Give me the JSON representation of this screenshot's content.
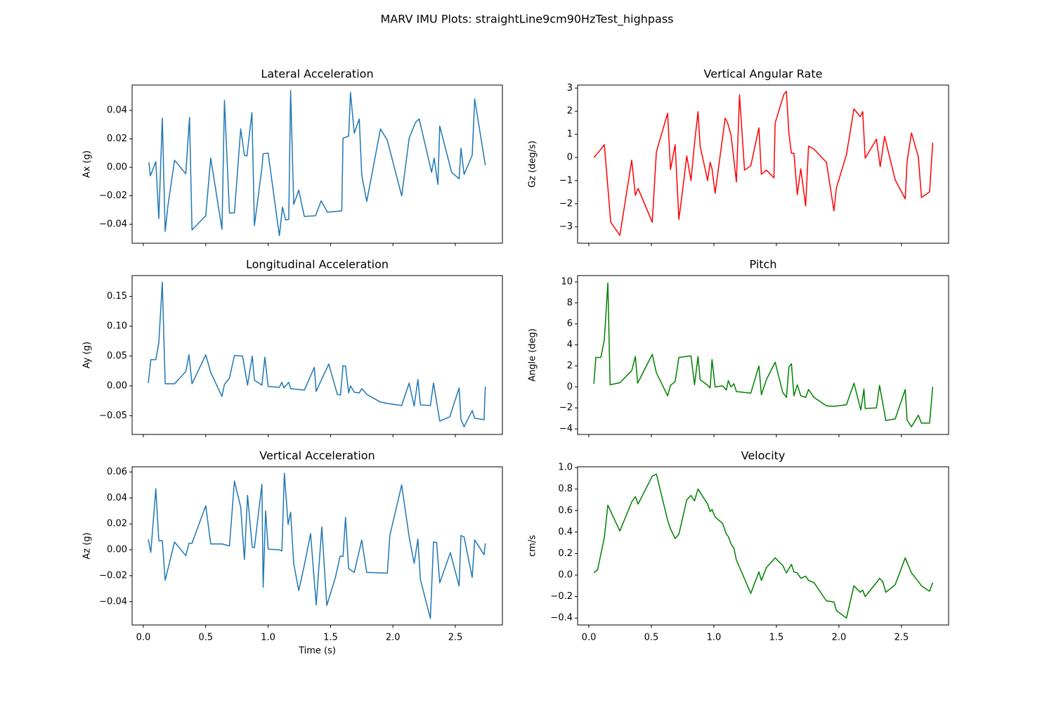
{
  "title": "MARV IMU Plots: straightLine9cm90HzTest_highpass",
  "chart_data": [
    {
      "type": "line",
      "title": "Lateral Acceleration",
      "ylabel": "Ax (g)",
      "color": "#1f77b4",
      "x": [
        0.045,
        0.056,
        0.1,
        0.124,
        0.152,
        0.175,
        0.197,
        0.25,
        0.34,
        0.37,
        0.39,
        0.5,
        0.54,
        0.63,
        0.65,
        0.69,
        0.73,
        0.78,
        0.81,
        0.83,
        0.87,
        0.89,
        0.95,
        0.96,
        1.0,
        1.075,
        1.09,
        1.115,
        1.14,
        1.165,
        1.18,
        1.205,
        1.245,
        1.29,
        1.38,
        1.425,
        1.475,
        1.59,
        1.6,
        1.645,
        1.66,
        1.69,
        1.73,
        1.75,
        1.79,
        1.9,
        1.955,
        2.07,
        2.13,
        2.18,
        2.21,
        2.31,
        2.33,
        2.36,
        2.375,
        2.47,
        2.53,
        2.545,
        2.57,
        2.635,
        2.655,
        2.74
      ],
      "values": [
        0.0035,
        -0.006,
        0.004,
        -0.036,
        0.0346,
        -0.045,
        -0.027,
        0.005,
        -0.0045,
        0.035,
        -0.044,
        -0.034,
        0.0065,
        -0.0435,
        0.047,
        -0.032,
        -0.032,
        0.027,
        0.0085,
        0.008,
        0.0385,
        -0.041,
        -0.0005,
        0.0095,
        0.01,
        -0.0385,
        -0.048,
        -0.028,
        -0.037,
        -0.0365,
        0.054,
        -0.026,
        -0.016,
        -0.0345,
        -0.034,
        -0.0235,
        -0.0315,
        -0.0305,
        0.0205,
        0.022,
        0.0525,
        0.024,
        0.034,
        -0.0055,
        -0.024,
        0.027,
        0.019,
        -0.02,
        0.0205,
        0.0315,
        0.034,
        -0.0035,
        0.0065,
        -0.012,
        0.029,
        -0.0035,
        -0.008,
        0.0135,
        -0.005,
        0.0085,
        0.048,
        0.0015
      ],
      "xlim": [
        -0.09,
        2.877
      ],
      "ylim": [
        -0.0533,
        0.0578
      ],
      "show_xtick_labels": false,
      "xticks": [
        0,
        0.5,
        1,
        1.5,
        2,
        2.5
      ],
      "yticks": [
        {
          "value": -0.04,
          "label": "−0.04"
        },
        {
          "value": -0.02,
          "label": "−0.02"
        },
        {
          "value": 0,
          "label": "0.00"
        },
        0.02,
        0.04
      ]
    },
    {
      "type": "line",
      "title": "Vertical Angular Rate",
      "ylabel": "Gz (deg/s)",
      "color": "#ff0000",
      "x": [
        0.04,
        0.07,
        0.124,
        0.175,
        0.248,
        0.343,
        0.372,
        0.394,
        0.507,
        0.54,
        0.63,
        0.653,
        0.69,
        0.72,
        0.755,
        0.783,
        0.817,
        0.845,
        0.873,
        0.89,
        0.95,
        0.97,
        0.985,
        1.01,
        1.09,
        1.11,
        1.137,
        1.18,
        1.205,
        1.245,
        1.295,
        1.36,
        1.38,
        1.42,
        1.48,
        1.49,
        1.56,
        1.58,
        1.6,
        1.62,
        1.64,
        1.667,
        1.695,
        1.734,
        1.757,
        1.8,
        1.9,
        1.96,
        1.98,
        2.06,
        2.12,
        2.17,
        2.19,
        2.21,
        2.3,
        2.33,
        2.365,
        2.45,
        2.53,
        2.545,
        2.58,
        2.635,
        2.66,
        2.725,
        2.75
      ],
      "values": [
        0,
        0.18,
        0.55,
        -2.8,
        -3.37,
        -0.12,
        -1.64,
        -1.34,
        -2.8,
        0.24,
        1.91,
        -0.52,
        0.55,
        -2.68,
        -1.19,
        0.06,
        -1.0,
        0.61,
        1.98,
        0.49,
        -1.0,
        -0.21,
        -0.49,
        -1.55,
        1.7,
        1.49,
        0.97,
        -1.06,
        2.71,
        -0.55,
        -0.36,
        1.28,
        -0.73,
        -0.55,
        -0.88,
        1.49,
        2.74,
        2.86,
        1.03,
        0.18,
        0.18,
        -1.61,
        -0.49,
        -2.1,
        0.49,
        0.36,
        -0.21,
        -2.31,
        -1.31,
        0.12,
        2.1,
        1.76,
        1.98,
        -0.03,
        0.79,
        -0.4,
        0.91,
        -0.97,
        -1.79,
        -0.18,
        1.06,
        0.03,
        -1.73,
        -1.49,
        0.64
      ],
      "xlim": [
        -0.09,
        2.877
      ],
      "ylim": [
        -3.71,
        3.13
      ],
      "show_xtick_labels": false,
      "xticks": [
        0,
        0.5,
        1,
        1.5,
        2,
        2.5
      ],
      "yticks": [
        {
          "value": -3,
          "label": "−3"
        },
        {
          "value": -2,
          "label": "−2"
        },
        {
          "value": -1,
          "label": "−1"
        },
        0,
        1,
        2,
        3
      ]
    },
    {
      "type": "line",
      "title": "Longitudinal Acceleration",
      "ylabel": "Ay (g)",
      "color": "#1f77b4",
      "x": [
        0.04,
        0.06,
        0.1,
        0.124,
        0.152,
        0.175,
        0.25,
        0.34,
        0.366,
        0.39,
        0.5,
        0.54,
        0.63,
        0.65,
        0.69,
        0.73,
        0.795,
        0.835,
        0.873,
        0.89,
        0.95,
        0.974,
        1.0,
        1.09,
        1.11,
        1.126,
        1.165,
        1.18,
        1.29,
        1.37,
        1.385,
        1.43,
        1.486,
        1.554,
        1.58,
        1.6,
        1.62,
        1.645,
        1.66,
        1.69,
        1.73,
        1.75,
        1.79,
        1.9,
        1.955,
        2.07,
        2.13,
        2.17,
        2.2,
        2.22,
        2.3,
        2.325,
        2.375,
        2.455,
        2.53,
        2.545,
        2.57,
        2.635,
        2.655,
        2.73,
        2.74
      ],
      "values": [
        0.005,
        0.044,
        0.044,
        0.072,
        0.174,
        0.0035,
        0.0035,
        0.024,
        0.052,
        0.0035,
        0.052,
        0.0225,
        -0.0177,
        0.0024,
        0.013,
        0.051,
        0.05,
        0.0012,
        0.05,
        0.0095,
        0.0012,
        0.048,
        -0.0012,
        -0.0024,
        0.006,
        -0.0035,
        0.006,
        -0.0047,
        -0.0071,
        0.031,
        -0.0094,
        0.0118,
        0.0366,
        -0.0142,
        -0.0154,
        0.034,
        0.033,
        -0.0118,
        0,
        -0.0106,
        -0.0118,
        -0.0047,
        -0.0142,
        -0.0272,
        -0.0295,
        -0.033,
        0.0047,
        -0.0342,
        0.0106,
        -0.0319,
        -0.033,
        0.0047,
        -0.059,
        -0.052,
        -0.0035,
        -0.0567,
        -0.0685,
        -0.0413,
        -0.0543,
        -0.0567,
        -0.0012
      ],
      "xlim": [
        -0.09,
        2.877
      ],
      "ylim": [
        -0.0815,
        0.185
      ],
      "show_xtick_labels": false,
      "xticks": [
        0,
        0.5,
        1,
        1.5,
        2,
        2.5
      ],
      "yticks": [
        {
          "value": -0.05,
          "label": "−0.05"
        },
        {
          "value": 0,
          "label": "0.00"
        },
        0.05,
        {
          "value": 0.1,
          "label": "0.10"
        },
        0.15
      ]
    },
    {
      "type": "line",
      "title": "Pitch",
      "ylabel": "Angle (deg)",
      "color": "#008000",
      "x": [
        0.04,
        0.056,
        0.096,
        0.124,
        0.152,
        0.17,
        0.248,
        0.343,
        0.372,
        0.39,
        0.507,
        0.54,
        0.63,
        0.653,
        0.69,
        0.72,
        0.783,
        0.817,
        0.845,
        0.873,
        0.89,
        0.95,
        0.97,
        0.985,
        1.01,
        1.07,
        1.1,
        1.115,
        1.137,
        1.16,
        1.18,
        1.295,
        1.36,
        1.38,
        1.42,
        1.49,
        1.55,
        1.58,
        1.6,
        1.62,
        1.64,
        1.667,
        1.695,
        1.734,
        1.757,
        1.8,
        1.9,
        1.96,
        2.06,
        2.12,
        2.175,
        2.2,
        2.21,
        2.3,
        2.325,
        2.375,
        2.45,
        2.53,
        2.545,
        2.58,
        2.635,
        2.66,
        2.725,
        2.75
      ],
      "values": [
        0.3,
        2.8,
        2.8,
        4.5,
        9.9,
        0.2,
        0.4,
        1.55,
        2.9,
        0.35,
        3.1,
        1.35,
        -0.85,
        0.15,
        0.5,
        2.8,
        2.9,
        2.95,
        0.2,
        2.9,
        0.7,
        0.15,
        -0.1,
        2.6,
        0,
        0.1,
        -0.3,
        0.6,
        0,
        0.3,
        -0.45,
        -0.6,
        2.0,
        -0.75,
        0.7,
        2.35,
        -0.5,
        -1.0,
        1.9,
        2.2,
        -0.85,
        0.2,
        -0.85,
        -1.0,
        -0.25,
        -1.0,
        -1.8,
        -1.85,
        -1.7,
        0.35,
        -2.2,
        -0.2,
        -2.05,
        -2.0,
        0.15,
        -3.2,
        -3.05,
        -0.25,
        -3.15,
        -3.8,
        -2.7,
        -3.45,
        -3.45,
        0
      ],
      "xlim": [
        -0.09,
        2.877
      ],
      "ylim": [
        -4.53,
        10.6
      ],
      "show_xtick_labels": false,
      "xticks": [
        0,
        0.5,
        1,
        1.5,
        2,
        2.5
      ],
      "yticks": [
        {
          "value": -4,
          "label": "−4"
        },
        {
          "value": -2,
          "label": "−2"
        },
        0,
        2,
        4,
        6,
        8,
        10
      ]
    },
    {
      "type": "line",
      "title": "Vertical Acceleration",
      "ylabel": "Az (g)",
      "xlabel": "Time (s)",
      "color": "#1f77b4",
      "x": [
        0.04,
        0.06,
        0.1,
        0.124,
        0.152,
        0.175,
        0.25,
        0.34,
        0.366,
        0.39,
        0.5,
        0.54,
        0.63,
        0.69,
        0.73,
        0.78,
        0.81,
        0.835,
        0.873,
        0.89,
        0.95,
        0.96,
        0.98,
        1.0,
        1.09,
        1.11,
        1.13,
        1.16,
        1.18,
        1.205,
        1.245,
        1.29,
        1.34,
        1.385,
        1.43,
        1.47,
        1.54,
        1.576,
        1.6,
        1.62,
        1.645,
        1.69,
        1.75,
        1.79,
        1.955,
        1.975,
        2.07,
        2.13,
        2.17,
        2.2,
        2.22,
        2.3,
        2.325,
        2.35,
        2.375,
        2.46,
        2.53,
        2.545,
        2.57,
        2.635,
        2.655,
        2.73,
        2.74
      ],
      "values": [
        0.008,
        -0.002,
        0.047,
        0.007,
        0.007,
        -0.0235,
        0.006,
        -0.0045,
        0.005,
        0.005,
        0.034,
        0.0045,
        0.0045,
        0.003,
        0.053,
        0.033,
        -0.0075,
        0.042,
        0.002,
        0.0015,
        0.0505,
        -0.029,
        0.03,
        0.0005,
        0,
        -0.001,
        0.059,
        0.0195,
        0.029,
        -0.0105,
        -0.0315,
        -0.012,
        0.0125,
        -0.0425,
        0.0175,
        -0.043,
        -0.021,
        -0.005,
        -0.005,
        0.025,
        -0.0145,
        -0.0175,
        0.0075,
        -0.0175,
        -0.018,
        0.011,
        0.05,
        0.0098,
        -0.0105,
        0.0082,
        -0.023,
        -0.053,
        0.006,
        0.0055,
        -0.0255,
        -0.0022,
        -0.028,
        0.011,
        0.0098,
        -0.0213,
        0.0076,
        -0.0038,
        0.005
      ],
      "xlim": [
        -0.09,
        2.877
      ],
      "ylim": [
        -0.058,
        0.064
      ],
      "show_xtick_labels": true,
      "xticks": [
        {
          "value": 0,
          "label": "0.0"
        },
        0.5,
        {
          "value": 1,
          "label": "1.0"
        },
        1.5,
        {
          "value": 2,
          "label": "2.0"
        },
        2.5
      ],
      "yticks": [
        {
          "value": -0.04,
          "label": "−0.04"
        },
        {
          "value": -0.02,
          "label": "−0.02"
        },
        {
          "value": 0,
          "label": "0.00"
        },
        0.02,
        0.04,
        0.06
      ]
    },
    {
      "type": "line",
      "title": "Velocity",
      "ylabel": "cm/s",
      "color": "#008000",
      "x": [
        0.04,
        0.07,
        0.124,
        0.152,
        0.248,
        0.343,
        0.372,
        0.394,
        0.507,
        0.54,
        0.63,
        0.653,
        0.69,
        0.72,
        0.783,
        0.817,
        0.845,
        0.873,
        0.95,
        0.97,
        0.985,
        1.01,
        1.07,
        1.1,
        1.115,
        1.137,
        1.16,
        1.18,
        1.295,
        1.36,
        1.38,
        1.42,
        1.49,
        1.55,
        1.58,
        1.62,
        1.64,
        1.667,
        1.695,
        1.734,
        1.757,
        1.8,
        1.9,
        1.96,
        1.98,
        2.06,
        2.12,
        2.17,
        2.19,
        2.21,
        2.3,
        2.325,
        2.35,
        2.375,
        2.45,
        2.53,
        2.58,
        2.635,
        2.66,
        2.725,
        2.75
      ],
      "values": [
        0.02,
        0.05,
        0.35,
        0.65,
        0.41,
        0.68,
        0.73,
        0.66,
        0.92,
        0.94,
        0.51,
        0.43,
        0.34,
        0.38,
        0.7,
        0.74,
        0.69,
        0.8,
        0.66,
        0.59,
        0.61,
        0.54,
        0.48,
        0.38,
        0.36,
        0.29,
        0.25,
        0.14,
        -0.17,
        0.03,
        -0.05,
        0.07,
        0.16,
        0.09,
        0.02,
        0.1,
        0.03,
        0.02,
        -0.03,
        -0.01,
        -0.05,
        -0.07,
        -0.24,
        -0.25,
        -0.33,
        -0.4,
        -0.1,
        -0.16,
        -0.14,
        -0.2,
        -0.07,
        -0.03,
        -0.06,
        -0.16,
        -0.09,
        0.16,
        0.02,
        -0.06,
        -0.1,
        -0.15,
        -0.07
      ],
      "xlim": [
        -0.09,
        2.877
      ],
      "ylim": [
        -0.464,
        1.007
      ],
      "show_xtick_labels": true,
      "xticks": [
        {
          "value": 0,
          "label": "0.0"
        },
        0.5,
        {
          "value": 1,
          "label": "1.0"
        },
        1.5,
        {
          "value": 2,
          "label": "2.0"
        },
        2.5
      ],
      "yticks": [
        {
          "value": -0.4,
          "label": "−0.4"
        },
        {
          "value": -0.2,
          "label": "−0.2"
        },
        {
          "value": 0,
          "label": "0.0"
        },
        0.2,
        0.4,
        0.6,
        0.8,
        {
          "value": 1,
          "label": "1.0"
        }
      ]
    }
  ]
}
